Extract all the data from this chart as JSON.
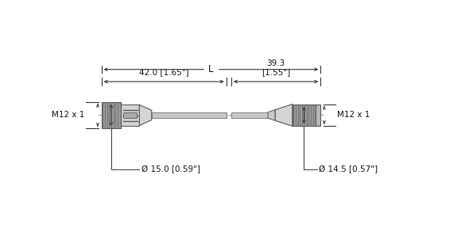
{
  "bg_color": "#ffffff",
  "line_color": "#444444",
  "left_connector": {
    "label": "M12 x 1",
    "diam_label": "Ø 15.0 [0.59\"]",
    "len_label": "42.0 [1.65\"]"
  },
  "right_connector": {
    "label": "M12 x 1",
    "diam_label": "Ø 14.5 [0.57\"]",
    "len_label": "39.3\n[1.55\"]"
  },
  "cable_label": "L",
  "font_size": 7.5,
  "small_font": 7.0,
  "body_gray": "#b8b8b8",
  "knurl_gray": "#999999",
  "light_gray": "#d4d4d4",
  "cable_gray": "#c8c8c8",
  "edge_color": "#555555",
  "dim_color": "#333333",
  "centerline_color": "#888888"
}
